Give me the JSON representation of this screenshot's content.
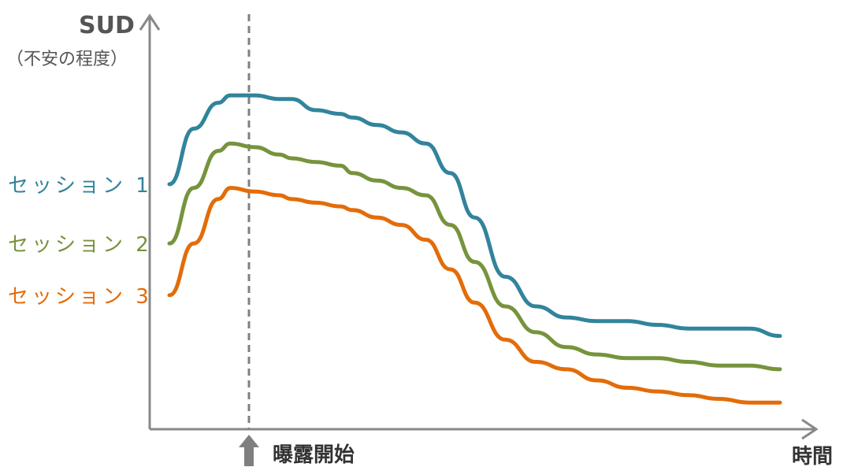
{
  "chart_data": {
    "type": "line",
    "ylabel": "SUD",
    "ylabel_sub": "（不安の程度）",
    "xlabel": "時間",
    "annotation": "曝露開始",
    "axes_color": "#888888",
    "series": [
      {
        "name": "セッション 1",
        "color": "#31849B",
        "x": [
          0,
          4,
          8,
          10,
          14,
          18,
          20,
          24,
          28,
          30,
          34,
          38,
          42,
          46,
          50,
          55,
          60,
          65,
          70,
          75,
          80,
          85,
          90,
          95,
          100
        ],
        "y": [
          63,
          78,
          85,
          87,
          87,
          86,
          86,
          83,
          82,
          81,
          79,
          77,
          74,
          66,
          54,
          38,
          30,
          27,
          26,
          26,
          25,
          24,
          24,
          24,
          22
        ]
      },
      {
        "name": "セッション 2",
        "color": "#77933C",
        "x": [
          0,
          4,
          8,
          10,
          14,
          18,
          20,
          24,
          28,
          30,
          34,
          38,
          42,
          46,
          50,
          55,
          60,
          65,
          70,
          75,
          80,
          85,
          90,
          95,
          100
        ],
        "y": [
          47,
          62,
          72,
          74,
          73,
          71,
          70,
          69,
          68,
          66,
          64,
          62,
          60,
          52,
          42,
          30,
          23,
          19,
          17,
          16,
          16,
          15,
          14,
          14,
          13
        ]
      },
      {
        "name": "セッション 3",
        "color": "#E36C09",
        "x": [
          0,
          4,
          8,
          10,
          14,
          18,
          20,
          24,
          28,
          30,
          34,
          38,
          42,
          46,
          50,
          55,
          60,
          65,
          70,
          75,
          80,
          85,
          90,
          95,
          100
        ],
        "y": [
          33,
          47,
          59,
          62,
          61,
          60,
          59,
          58,
          57,
          56,
          54,
          52,
          48,
          40,
          31,
          21,
          15,
          13,
          10,
          8,
          7,
          6,
          5,
          4,
          4
        ]
      }
    ]
  }
}
